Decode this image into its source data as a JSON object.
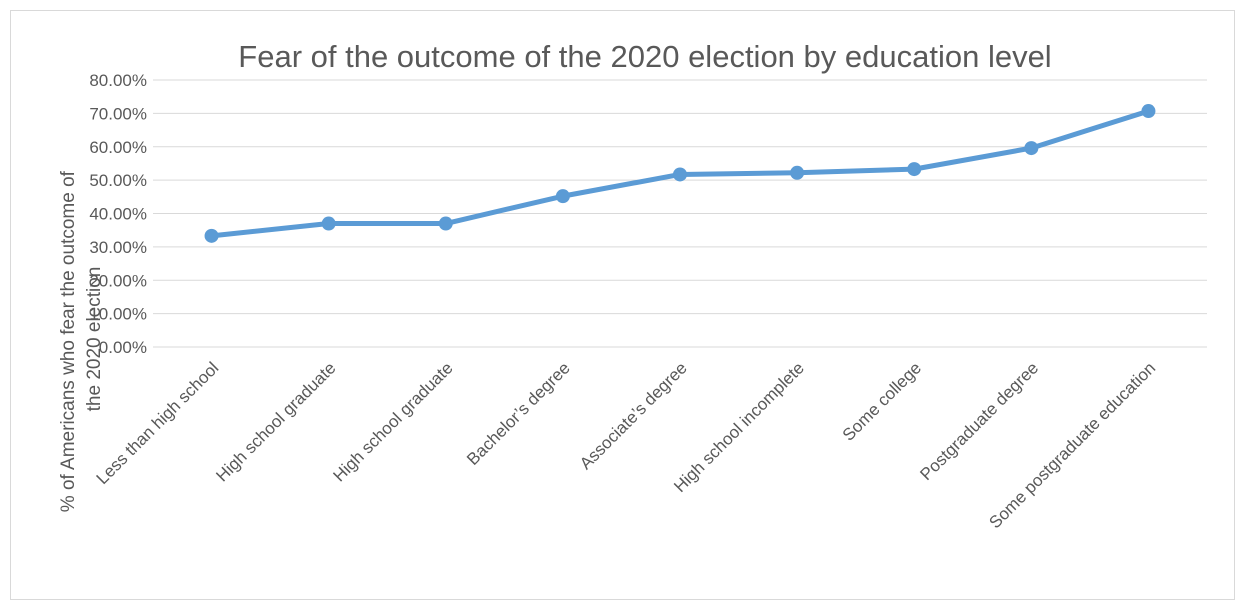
{
  "chart_data": {
    "type": "line",
    "title": "Fear of the outcome of the 2020 election by education level",
    "ylabel": "% of Americans who fear the outcome of the 2020 election",
    "xlabel": "",
    "categories": [
      "Less than high school",
      "High school graduate",
      "High school graduate",
      "Bachelor’s degree",
      "Associate’s degree",
      "High school incomplete",
      "Some college",
      "Postgraduate degree",
      "Some postgraduate education"
    ],
    "series": [
      {
        "values": [
          0.333,
          0.37,
          0.37,
          0.452,
          0.517,
          0.522,
          0.533,
          0.596,
          0.707
        ],
        "color": "#5b9bd5"
      }
    ],
    "ylim": [
      0,
      0.8
    ],
    "ytick_labels": [
      "0.00%",
      "10.00%",
      "20.00%",
      "30.00%",
      "40.00%",
      "50.00%",
      "60.00%",
      "70.00%",
      "80.00%"
    ],
    "grid": true,
    "legend": "none",
    "marker": "circle"
  }
}
